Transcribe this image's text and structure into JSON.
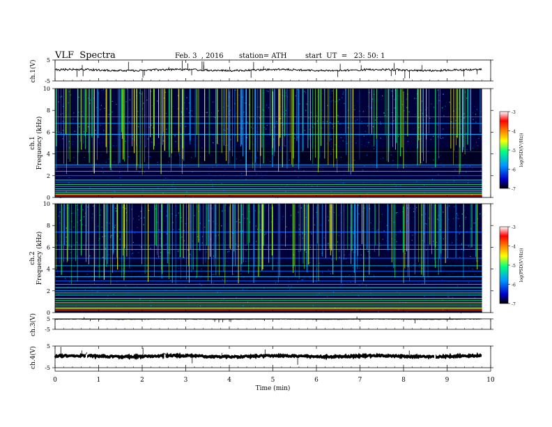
{
  "header": {
    "title": "VLF  Spectra",
    "date": "Feb. 3  , 2016",
    "station": "station= ATH",
    "start": "start  UT  =   23: 50: 1"
  },
  "chart_data": [
    {
      "id": "ch1-waveform",
      "type": "line",
      "ylabel": "ch.1(V)",
      "y_tick_labels": [
        "5",
        "-5"
      ],
      "ylim": [
        -5,
        5
      ],
      "xlim": [
        0,
        10
      ],
      "baseline_value": 0.2,
      "data_ends_at": 9.8
    },
    {
      "id": "ch1-spectrogram",
      "type": "heatmap",
      "ylabel_top": "ch.1",
      "ylabel": "Frequency  (kHz)",
      "ylim": [
        0,
        10
      ],
      "y_tick_labels": [
        "0",
        "2",
        "4",
        "6",
        "8",
        "10"
      ],
      "xlim": [
        0,
        10
      ],
      "data_ends_at": 9.8,
      "colorbar": {
        "label": "log(PSD(V²/Hz))",
        "ticks": [
          "-3",
          "-4",
          "-5",
          "-6",
          "-7"
        ],
        "range": [
          -7,
          -3
        ]
      }
    },
    {
      "id": "ch2-spectrogram",
      "type": "heatmap",
      "ylabel_top": "ch.2",
      "ylabel": "Frequency  (kHz)",
      "ylim": [
        0,
        10
      ],
      "y_tick_labels": [
        "0",
        "2",
        "4",
        "6",
        "8",
        "10"
      ],
      "xlim": [
        0,
        10
      ],
      "data_ends_at": 9.8,
      "colorbar": {
        "label": "log(PSD(V²/Hz))",
        "ticks": [
          "-3",
          "-4",
          "-5",
          "-6",
          "-7"
        ],
        "range": [
          -7,
          -3
        ]
      }
    },
    {
      "id": "ch3-waveform",
      "type": "line",
      "ylabel": "ch.3(V)",
      "y_tick_labels": [
        "5",
        "-5"
      ],
      "ylim": [
        -5,
        5
      ],
      "xlim": [
        0,
        10
      ],
      "baseline_value": 4.7,
      "data_ends_at": 9.8
    },
    {
      "id": "ch4-waveform",
      "type": "line",
      "ylabel": "ch.4(V)",
      "y_tick_labels": [
        "5",
        "-5"
      ],
      "ylim": [
        -5,
        5
      ],
      "xlim": [
        0,
        10
      ],
      "baseline_value": 0.3,
      "data_ends_at": 9.8
    }
  ],
  "x_axis": {
    "label": "Time  (min)",
    "ticks": [
      "0",
      "1",
      "2",
      "3",
      "4",
      "5",
      "6",
      "7",
      "8",
      "9",
      "10"
    ]
  },
  "colors": {
    "spectrogram_background": "#00003a",
    "colorbar_stops": [
      "#000000",
      "#0000c8",
      "#0096ff",
      "#00ff80",
      "#ffff00",
      "#ff8000",
      "#ff0000",
      "#ffffff"
    ]
  }
}
